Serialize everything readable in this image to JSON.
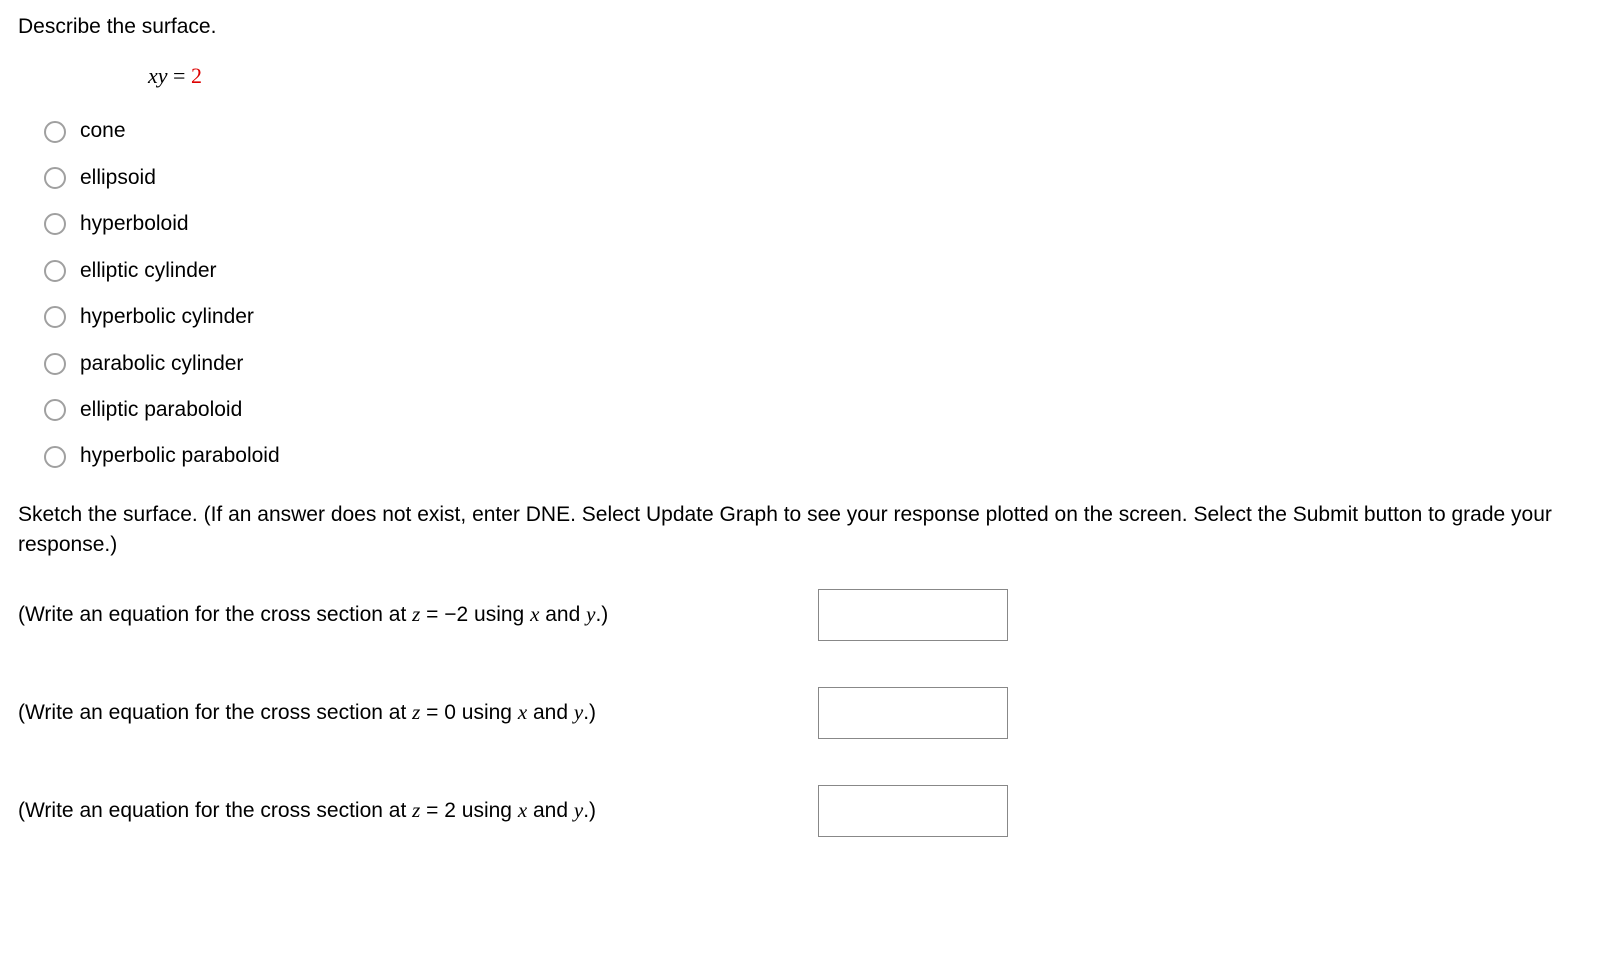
{
  "prompt": "Describe the surface.",
  "equation": {
    "lhs": "xy",
    "op": " = ",
    "constant": "2",
    "constant_color": "#dd0000"
  },
  "options": [
    "cone",
    "ellipsoid",
    "hyperboloid",
    "elliptic cylinder",
    "hyperbolic cylinder",
    "parabolic cylinder",
    "elliptic paraboloid",
    "hyperbolic paraboloid"
  ],
  "instructions": "Sketch the surface. (If an answer does not exist, enter DNE. Select Update Graph to see your response plotted on the screen. Select the Submit button to grade your response.)",
  "cross_sections": [
    {
      "pre": "(Write an equation for the cross section at ",
      "var": "z",
      "eq": " = −2 using ",
      "xv": "x",
      "mid": " and ",
      "yv": "y",
      "post": ".)",
      "value": ""
    },
    {
      "pre": "(Write an equation for the cross section at ",
      "var": "z",
      "eq": " = 0 using ",
      "xv": "x",
      "mid": " and ",
      "yv": "y",
      "post": ".)",
      "value": ""
    },
    {
      "pre": "(Write an equation for the cross section at ",
      "var": "z",
      "eq": " = 2 using ",
      "xv": "x",
      "mid": " and ",
      "yv": "y",
      "post": ".)",
      "value": ""
    }
  ],
  "style": {
    "body_font_size": 21,
    "body_color": "#000000",
    "background": "#ffffff",
    "radio_border_color": "#a0a0a0",
    "input_border_color": "#888888",
    "input_width": 190,
    "input_height": 52
  }
}
